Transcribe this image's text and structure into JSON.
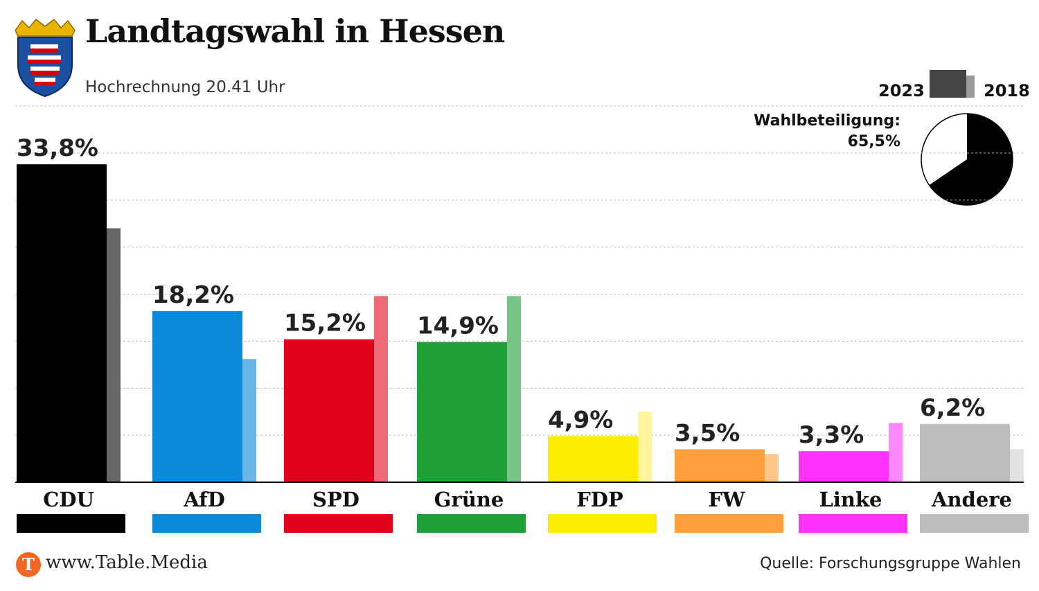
{
  "title": "Landtagswahl in Hessen",
  "subtitle": "Hochrechnung 20.41 Uhr",
  "legend": {
    "current": "2023",
    "previous": "2018"
  },
  "turnout": {
    "label": "Wahlbeteiligung:",
    "value_text": "65,5%",
    "value": 65.5
  },
  "footer": {
    "logo_letter": "T",
    "url": "www.Table.Media",
    "source": "Quelle: Forschungsgruppe Wahlen"
  },
  "chart_data": {
    "type": "bar",
    "categories": [
      "CDU",
      "AfD",
      "SPD",
      "Grüne",
      "FDP",
      "FW",
      "Linke",
      "Andere"
    ],
    "series": [
      {
        "name": "2023",
        "values": [
          33.8,
          18.2,
          15.2,
          14.9,
          4.9,
          3.5,
          3.3,
          6.2
        ]
      },
      {
        "name": "2018",
        "values": [
          27.0,
          13.1,
          19.8,
          19.8,
          7.5,
          3.0,
          6.3,
          3.5
        ]
      }
    ],
    "value_labels": [
      "33,8%",
      "18,2%",
      "15,2%",
      "14,9%",
      "4,9%",
      "3,5%",
      "3,3%",
      "6,2%"
    ],
    "colors_2023": [
      "#000000",
      "#0a8ad8",
      "#e2001a",
      "#1fa037",
      "#ffed00",
      "#ffa03c",
      "#ff33ff",
      "#bdbdbd"
    ],
    "colors_2018": [
      "#666666",
      "#6ab6eb",
      "#ee6a76",
      "#79c488",
      "#fff59a",
      "#ffc68a",
      "#ff8aff",
      "#e2e2e2"
    ],
    "ylim": [
      0,
      35
    ],
    "grid": true
  }
}
